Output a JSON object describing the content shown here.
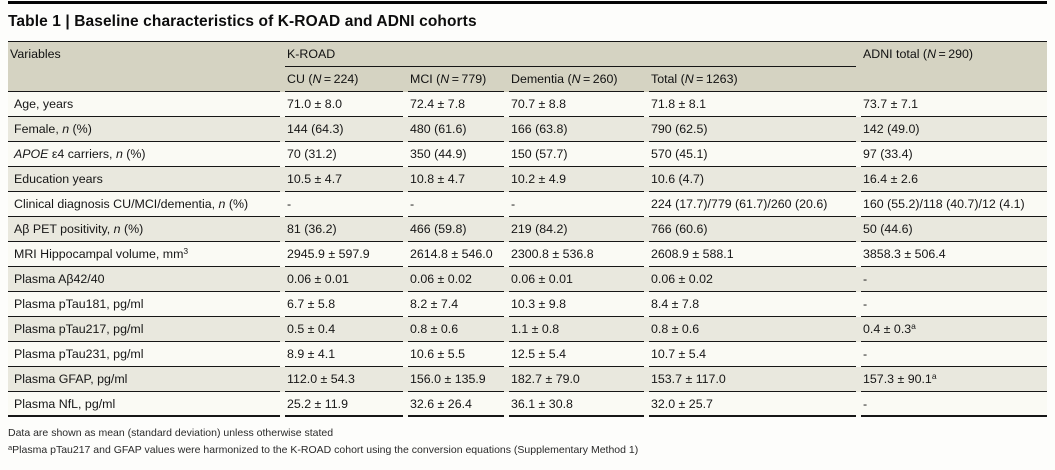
{
  "title": "Table 1 | Baseline characteristics of K-ROAD and ADNI cohorts",
  "colors": {
    "header_bg": "#d5d3c2",
    "stripe_bg": "#e9e8de",
    "row_bg": "#fafaf4",
    "rule": "#161616"
  },
  "table": {
    "corner_header": "Variables",
    "group_headers": {
      "kroad": "K-ROAD",
      "adni_html": "ADNI total (<i>N</i>&#8239;=&#8239;290)"
    },
    "subheaders_html": [
      "CU (<i>N</i>&#8239;=&#8239;224)",
      "MCI (<i>N</i>&#8239;=&#8239;779)",
      "Dementia (<i>N</i>&#8239;=&#8239;260)",
      "Total (<i>N</i>&#8239;=&#8239;1263)"
    ],
    "rows": [
      {
        "label_html": "Age, years",
        "values_html": [
          "71.0 ± 8.0",
          "72.4 ± 7.8",
          "70.7 ± 8.8",
          "71.8 ± 8.1",
          "73.7 ± 7.1"
        ]
      },
      {
        "label_html": "Female, <i>n</i> (%)",
        "values_html": [
          "144 (64.3)",
          "480 (61.6)",
          "166 (63.8)",
          "790 (62.5)",
          "142 (49.0)"
        ]
      },
      {
        "label_html": "<i>APOE</i> ε4 carriers, <i>n</i> (%)",
        "values_html": [
          "70 (31.2)",
          "350 (44.9)",
          "150 (57.7)",
          "570 (45.1)",
          "97 (33.4)"
        ]
      },
      {
        "label_html": "Education years",
        "values_html": [
          "10.5 ± 4.7",
          "10.8 ± 4.7",
          "10.2 ± 4.9",
          "10.6 (4.7)",
          "16.4 ± 2.6"
        ]
      },
      {
        "label_html": "Clinical diagnosis CU/MCI/dementia, <i>n</i> (%)",
        "values_html": [
          "-",
          "-",
          "-",
          "224 (17.7)/779 (61.7)/260 (20.6)",
          "160 (55.2)/118 (40.7)/12 (4.1)"
        ]
      },
      {
        "label_html": "Aβ PET positivity, <i>n</i> (%)",
        "values_html": [
          "81 (36.2)",
          "466 (59.8)",
          "219 (84.2)",
          "766 (60.6)",
          "50 (44.6)"
        ]
      },
      {
        "label_html": "MRI Hippocampal volume, mm<sup>3</sup>",
        "values_html": [
          "2945.9 ± 597.9",
          "2614.8 ± 546.0",
          "2300.8 ± 536.8",
          "2608.9 ± 588.1",
          "3858.3 ± 506.4"
        ]
      },
      {
        "label_html": "Plasma Aβ42/40",
        "values_html": [
          "0.06 ± 0.01",
          "0.06 ± 0.02",
          "0.06 ± 0.01",
          "0.06 ± 0.02",
          "-"
        ]
      },
      {
        "label_html": "Plasma pTau181, pg/ml",
        "values_html": [
          "6.7 ± 5.8",
          "8.2 ± 7.4",
          "10.3 ± 9.8",
          "8.4 ± 7.8",
          "-"
        ]
      },
      {
        "label_html": "Plasma pTau217, pg/ml",
        "values_html": [
          "0.5 ± 0.4",
          "0.8 ± 0.6",
          "1.1 ± 0.8",
          "0.8 ± 0.6",
          "0.4 ± 0.3<sup>a</sup>"
        ]
      },
      {
        "label_html": "Plasma pTau231, pg/ml",
        "values_html": [
          "8.9 ± 4.1",
          "10.6 ± 5.5",
          "12.5 ± 5.4",
          "10.7 ± 5.4",
          "-"
        ]
      },
      {
        "label_html": "Plasma GFAP, pg/ml",
        "values_html": [
          "112.0 ± 54.3",
          "156.0 ± 135.9",
          "182.7 ± 79.0",
          "153.7 ± 117.0",
          "157.3 ± 90.1<sup>a</sup>"
        ]
      },
      {
        "label_html": "Plasma NfL, pg/ml",
        "values_html": [
          "25.2 ± 11.9",
          "32.6 ± 26.4",
          "36.1 ± 30.8",
          "32.0 ± 25.7",
          "-"
        ]
      }
    ]
  },
  "footnotes": {
    "line1": "Data are shown as mean (standard deviation) unless otherwise stated",
    "line2_html": "<sup>a</sup>Plasma pTau217 and GFAP values were harmonized to the K-ROAD cohort using the conversion equations (Supplementary Method 1)"
  }
}
